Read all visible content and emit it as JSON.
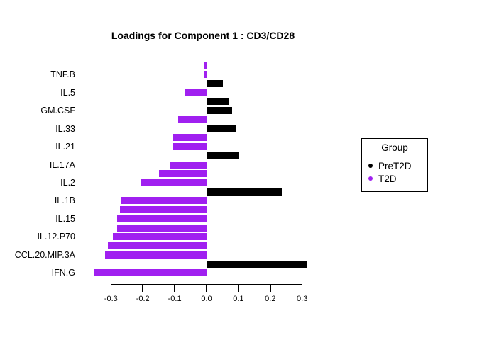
{
  "title": "Loadings for Component 1 : CD3/CD28",
  "colors": {
    "background": "#FFFFFF",
    "axis": "#000000",
    "text": "#000000",
    "groups": {
      "PreT2D": "#000000",
      "T2D": "#A020F0"
    }
  },
  "legend": {
    "title": "Group",
    "position": "right",
    "items": [
      {
        "label": "PreT2D",
        "color": "#000000"
      },
      {
        "label": "T2D",
        "color": "#A020F0"
      }
    ]
  },
  "chart_data": {
    "type": "bar",
    "orientation": "horizontal",
    "title": "Loadings for Component 1 : CD3/CD28",
    "xlabel": "",
    "ylabel": "",
    "xlim": [
      -0.38,
      0.34
    ],
    "grid": false,
    "categories": [
      "TNF.B",
      "IL.5",
      "GM.CSF",
      "IL.33",
      "IL.21",
      "IL.17A",
      "IL.2",
      "IL.1B",
      "IL.15",
      "IL.12.P70",
      "CCL.20.MIP.3A",
      "IFN.G"
    ],
    "pairs": [
      {
        "label": "TNF.B",
        "bars": [
          {
            "group": "T2D",
            "value": -0.007
          },
          {
            "group": "T2D",
            "value": -0.01
          }
        ]
      },
      {
        "label": "IL.5",
        "bars": [
          {
            "group": "PreT2D",
            "value": 0.052
          },
          {
            "group": "T2D",
            "value": -0.07
          }
        ]
      },
      {
        "label": "GM.CSF",
        "bars": [
          {
            "group": "PreT2D",
            "value": 0.072
          },
          {
            "group": "PreT2D",
            "value": 0.08
          }
        ]
      },
      {
        "label": "IL.33",
        "bars": [
          {
            "group": "T2D",
            "value": -0.088
          },
          {
            "group": "PreT2D",
            "value": 0.092
          }
        ]
      },
      {
        "label": "IL.21",
        "bars": [
          {
            "group": "T2D",
            "value": -0.104
          },
          {
            "group": "T2D",
            "value": -0.104
          }
        ]
      },
      {
        "label": "IL.17A",
        "bars": [
          {
            "group": "PreT2D",
            "value": 0.101
          },
          {
            "group": "T2D",
            "value": -0.115
          }
        ]
      },
      {
        "label": "IL.2",
        "bars": [
          {
            "group": "T2D",
            "value": -0.149
          },
          {
            "group": "T2D",
            "value": -0.205
          }
        ]
      },
      {
        "label": "IL.1B",
        "bars": [
          {
            "group": "PreT2D",
            "value": 0.237
          },
          {
            "group": "T2D",
            "value": -0.27
          }
        ]
      },
      {
        "label": "IL.15",
        "bars": [
          {
            "group": "T2D",
            "value": -0.272
          },
          {
            "group": "T2D",
            "value": -0.281
          }
        ]
      },
      {
        "label": "IL.12.P70",
        "bars": [
          {
            "group": "T2D",
            "value": -0.281
          },
          {
            "group": "T2D",
            "value": -0.294
          }
        ]
      },
      {
        "label": "CCL.20.MIP.3A",
        "bars": [
          {
            "group": "T2D",
            "value": -0.31
          },
          {
            "group": "T2D",
            "value": -0.319
          }
        ]
      },
      {
        "label": "IFN.G",
        "bars": [
          {
            "group": "PreT2D",
            "value": 0.315
          },
          {
            "group": "T2D",
            "value": -0.351
          }
        ]
      }
    ],
    "xticks": [
      -0.3,
      -0.2,
      -0.1,
      0.0,
      0.1,
      0.2,
      0.3
    ],
    "xtick_labels": [
      "-0.3",
      "-0.2",
      "-0.1",
      "0.0",
      "0.1",
      "0.2",
      "0.3"
    ]
  }
}
